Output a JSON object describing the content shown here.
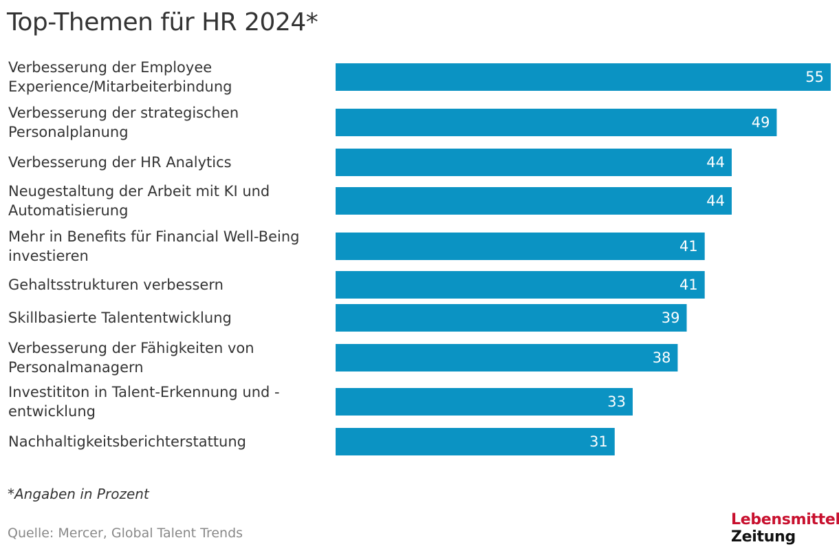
{
  "header": {
    "title": "Top-Themen für HR 2024*"
  },
  "chart_data": {
    "type": "bar",
    "orientation": "horizontal",
    "title": "Top-Themen für HR 2024*",
    "xlabel": "",
    "ylabel": "",
    "xlim": [
      0,
      55
    ],
    "grid": false,
    "bar_color": "#0b93c3",
    "value_label_color": "#ffffff",
    "categories": [
      [
        "Verbesserung der Employee",
        "Experience/Mitarbeiterbindung"
      ],
      [
        "Verbesserung der strategischen",
        "Personalplanung"
      ],
      [
        "Verbesserung der HR Analytics"
      ],
      [
        "Neugestaltung der Arbeit mit KI und",
        "Automatisierung"
      ],
      [
        "Mehr in Benefits für Financial Well-Being",
        "investieren"
      ],
      [
        "Gehaltsstrukturen verbessern"
      ],
      [
        "Skillbasierte Talententwicklung"
      ],
      [
        "Verbesserung der Fähigkeiten von",
        "Personalmanagern"
      ],
      [
        "Investititon in Talent-Erkennung und -",
        "entwicklung"
      ],
      [
        "Nachhaltigkeitsberichterstattung"
      ]
    ],
    "values": [
      55,
      49,
      44,
      44,
      41,
      41,
      39,
      38,
      33,
      31
    ]
  },
  "footer": {
    "footnote": "*Angaben in Prozent",
    "source": "Quelle: Mercer, Global Talent Trends"
  },
  "logo": {
    "line1": "Lebensmittel",
    "line2": "Zeitung"
  }
}
